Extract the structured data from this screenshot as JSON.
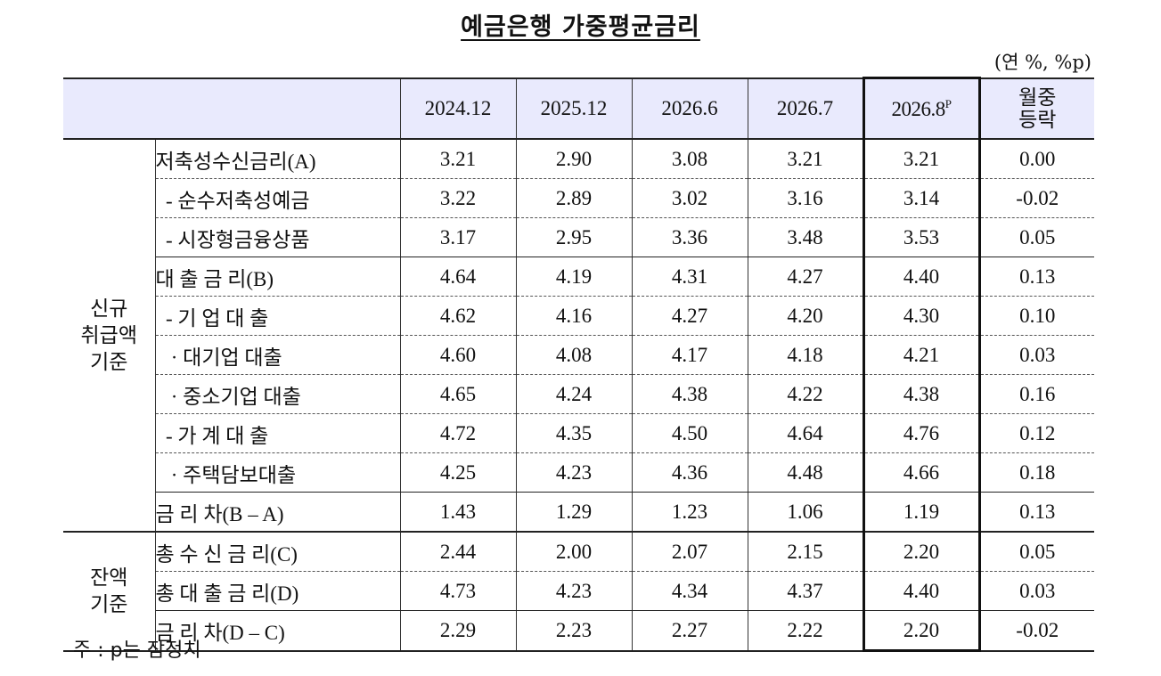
{
  "title": "예금은행 가중평균금리",
  "unit": "(연 %, %p)",
  "header": {
    "columns": [
      "2024.12",
      "2025.12",
      "2026.6",
      "2026.7"
    ],
    "latest": "2026.8",
    "latest_sup": "P",
    "change": "월중 등락"
  },
  "groups": [
    {
      "name": "신규 취급액 기준"
    },
    {
      "name": "잔액 기준"
    }
  ],
  "rows": [
    {
      "label": "저축성수신금리(A)",
      "values": [
        "3.21",
        "2.90",
        "3.08",
        "3.21",
        "3.21",
        "0.00"
      ]
    },
    {
      "label": "  - 순수저축성예금",
      "values": [
        "3.22",
        "2.89",
        "3.02",
        "3.16",
        "3.14",
        "-0.02"
      ]
    },
    {
      "label": "  - 시장형금융상품",
      "values": [
        "3.17",
        "2.95",
        "3.36",
        "3.48",
        "3.53",
        "0.05"
      ]
    },
    {
      "label": "대 출 금 리(B)",
      "values": [
        "4.64",
        "4.19",
        "4.31",
        "4.27",
        "4.40",
        "0.13"
      ]
    },
    {
      "label": "  - 기 업 대 출",
      "values": [
        "4.62",
        "4.16",
        "4.27",
        "4.20",
        "4.30",
        "0.10"
      ]
    },
    {
      "label": "   · 대기업 대출",
      "values": [
        "4.60",
        "4.08",
        "4.17",
        "4.18",
        "4.21",
        "0.03"
      ]
    },
    {
      "label": "   · 중소기업 대출",
      "values": [
        "4.65",
        "4.24",
        "4.38",
        "4.22",
        "4.38",
        "0.16"
      ]
    },
    {
      "label": "  - 가 계 대 출",
      "values": [
        "4.72",
        "4.35",
        "4.50",
        "4.64",
        "4.76",
        "0.12"
      ]
    },
    {
      "label": "   · 주택담보대출",
      "values": [
        "4.25",
        "4.23",
        "4.36",
        "4.48",
        "4.66",
        "0.18"
      ]
    },
    {
      "label": "금 리 차(B – A)",
      "values": [
        "1.43",
        "1.29",
        "1.23",
        "1.06",
        "1.19",
        "0.13"
      ]
    },
    {
      "label": "총 수 신 금 리(C)",
      "values": [
        "2.44",
        "2.00",
        "2.07",
        "2.15",
        "2.20",
        "0.05"
      ]
    },
    {
      "label": "총 대 출 금 리(D)",
      "values": [
        "4.73",
        "4.23",
        "4.34",
        "4.37",
        "4.40",
        "0.03"
      ]
    },
    {
      "label": "금 리 차(D – C)",
      "values": [
        "2.29",
        "2.23",
        "2.27",
        "2.22",
        "2.20",
        "-0.02"
      ]
    }
  ],
  "note": "주 : p는 잠정치"
}
